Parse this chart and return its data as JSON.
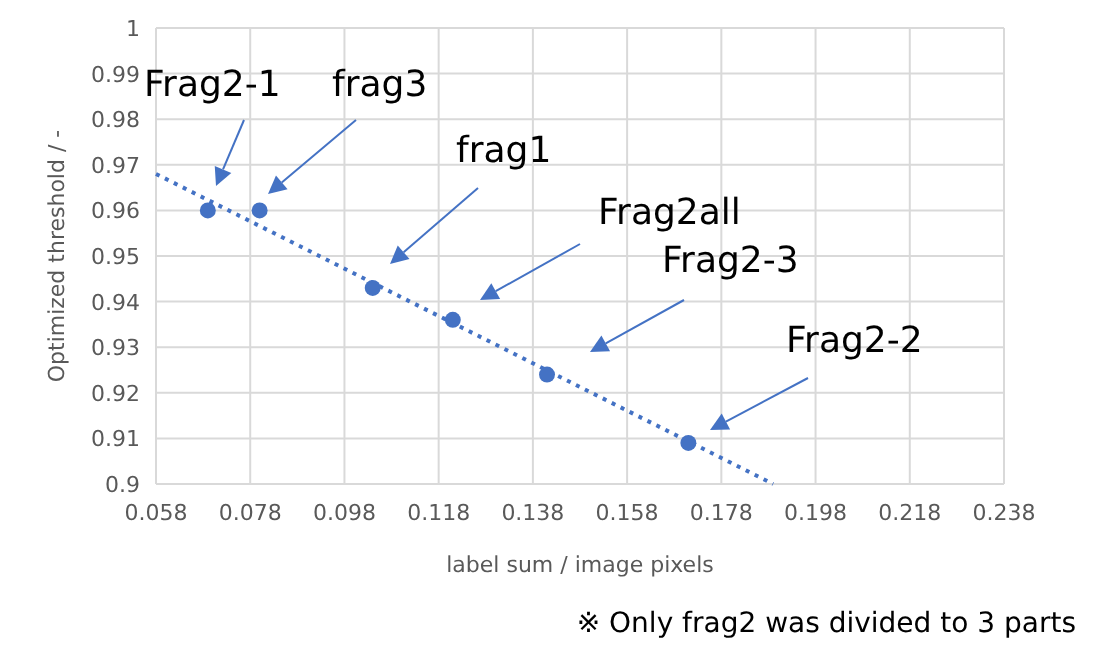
{
  "chart_data": {
    "type": "scatter",
    "xlabel": "label sum / image pixels",
    "ylabel": "Optimized threshold / -",
    "xlim": [
      0.058,
      0.238
    ],
    "xticks": [
      0.058,
      0.078,
      0.098,
      0.118,
      0.138,
      0.158,
      0.178,
      0.198,
      0.218,
      0.238
    ],
    "ylim": [
      0.9,
      1
    ],
    "yticks": [
      0.9,
      0.91,
      0.92,
      0.93,
      0.94,
      0.95,
      0.96,
      0.97,
      0.98,
      0.99,
      1
    ],
    "grid": true,
    "marker": "circle",
    "series": [
      {
        "type": "scatter",
        "color": "#4472c4",
        "x": [
          0.069,
          0.08,
          0.104,
          0.121,
          0.141,
          0.171
        ],
        "values": [
          0.96,
          0.96,
          0.943,
          0.936,
          0.924,
          0.909
        ]
      },
      {
        "type": "line",
        "color": "#4472c4",
        "line_style": "dotted",
        "marker": "none",
        "x": [
          0.058,
          0.189
        ],
        "values": [
          0.968,
          0.9
        ]
      }
    ],
    "annotations": [
      "Frag2-1",
      "frag3",
      "frag1",
      "Frag2all",
      "Frag2-3",
      "Frag2-2",
      "※ Only frag2 was divided to 3 parts"
    ]
  }
}
